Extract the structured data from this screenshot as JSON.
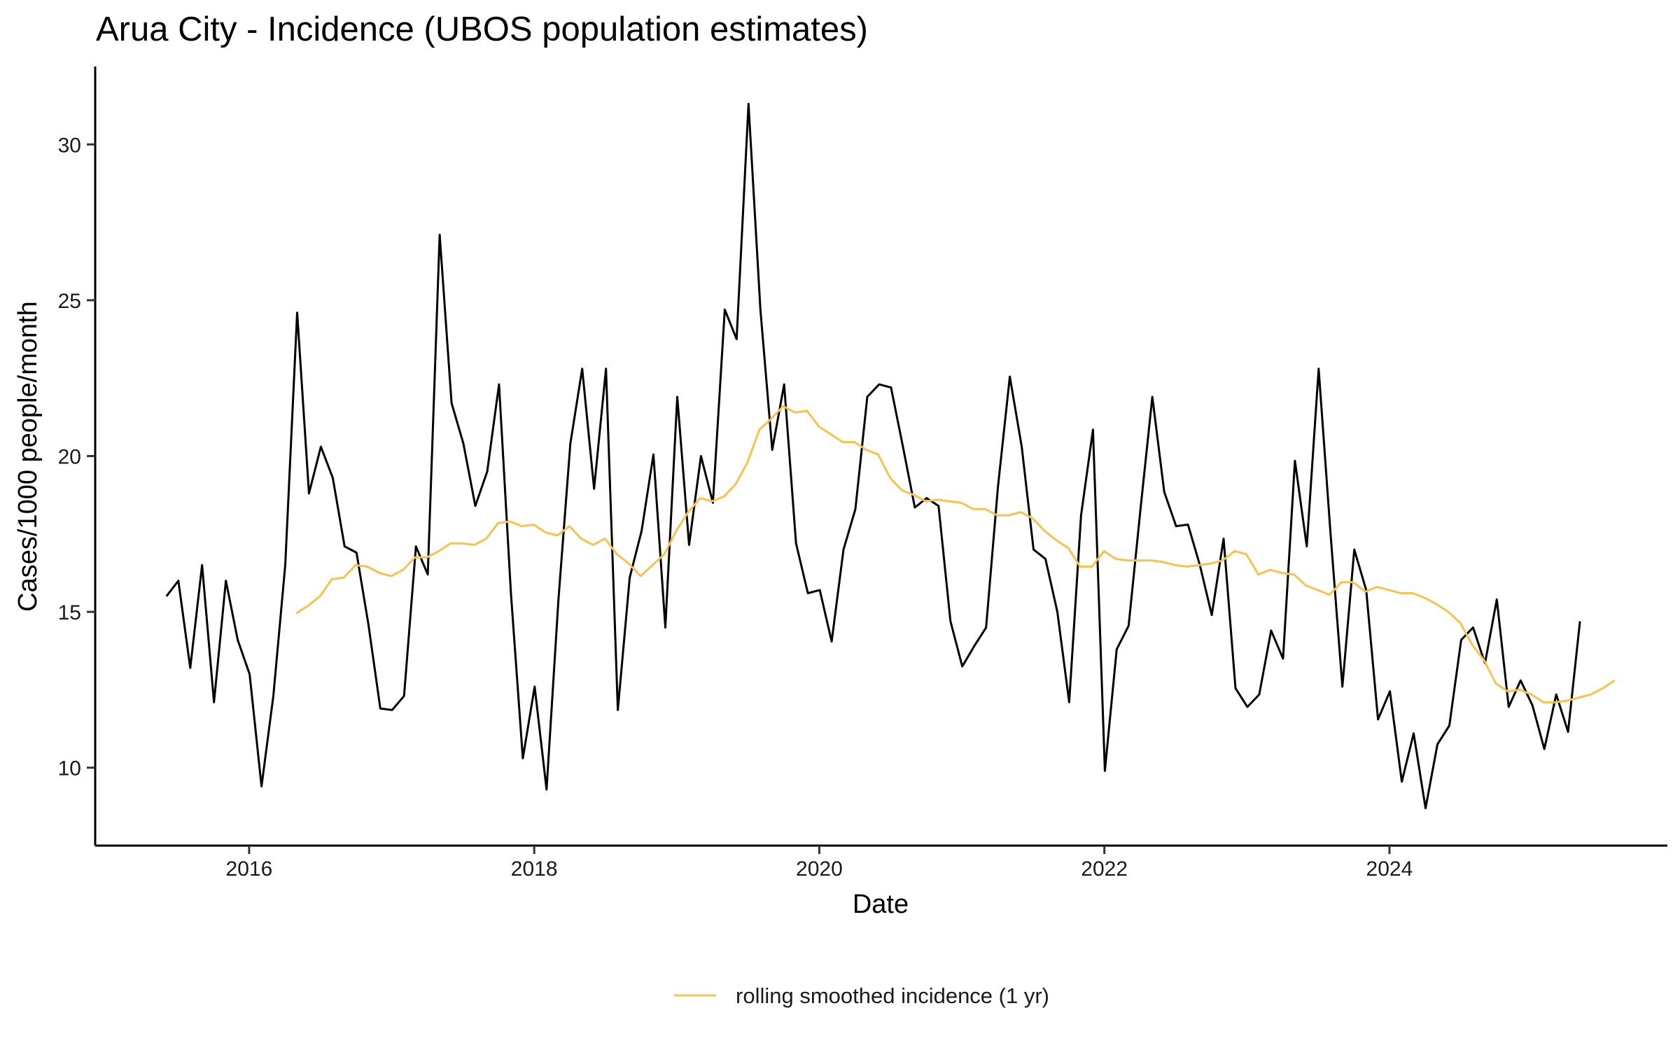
{
  "chart_data": {
    "type": "line",
    "title": "Arua City - Incidence (UBOS population estimates)",
    "xlabel": "Date",
    "ylabel": "Cases/1000 people/month",
    "xlim": [
      2014.92,
      2025.95
    ],
    "ylim": [
      7.5,
      32.5
    ],
    "x_ticks": [
      2016,
      2018,
      2020,
      2022,
      2024
    ],
    "x_tick_labels": [
      "2016",
      "2018",
      "2020",
      "2022",
      "2024"
    ],
    "y_ticks": [
      10,
      15,
      20,
      25,
      30
    ],
    "y_tick_labels": [
      "10",
      "15",
      "20",
      "25",
      "30"
    ],
    "grid": false,
    "legend_position": "bottom",
    "series": [
      {
        "name": "incidence",
        "color": "#000000",
        "in_legend": false,
        "x_start": 2015.42,
        "step_months": 1,
        "values": [
          15.5,
          16.0,
          13.2,
          16.5,
          12.1,
          16.0,
          14.1,
          13.0,
          9.4,
          12.3,
          16.5,
          24.6,
          18.8,
          20.3,
          19.3,
          17.1,
          16.9,
          14.6,
          11.9,
          11.85,
          12.3,
          17.1,
          16.2,
          27.1,
          21.7,
          20.4,
          18.4,
          19.5,
          22.3,
          15.6,
          10.3,
          12.6,
          9.3,
          15.4,
          20.4,
          22.8,
          18.95,
          22.8,
          11.85,
          16.1,
          17.6,
          20.05,
          14.5,
          21.9,
          17.15,
          20.0,
          18.5,
          24.7,
          23.75,
          31.3,
          24.7,
          20.2,
          22.3,
          17.2,
          15.6,
          15.7,
          14.05,
          17.0,
          18.3,
          21.9,
          22.3,
          22.2,
          20.3,
          18.35,
          18.65,
          18.4,
          14.7,
          13.25,
          13.9,
          14.5,
          19.0,
          22.55,
          20.3,
          17.0,
          16.7,
          15.0,
          12.1,
          18.1,
          20.85,
          9.9,
          13.8,
          14.55,
          18.3,
          21.9,
          18.85,
          17.75,
          17.8,
          16.5,
          14.9,
          17.35,
          12.55,
          11.95,
          12.35,
          14.4,
          13.5,
          19.85,
          17.1,
          22.8,
          17.5,
          12.6,
          17.0,
          15.7,
          11.55,
          12.45,
          9.55,
          11.1,
          8.7,
          10.75,
          11.35,
          14.1,
          14.5,
          13.35,
          15.4,
          11.95,
          12.8,
          12.0,
          10.6,
          12.35,
          11.15,
          14.7
        ]
      },
      {
        "name": "rolling smoothed incidence (1 yr)",
        "color": "#f8c24e",
        "in_legend": true,
        "x_start": 2016.33,
        "step_months": 1,
        "values": [
          14.95,
          15.2,
          15.5,
          16.05,
          16.1,
          16.5,
          16.45,
          16.25,
          16.15,
          16.35,
          16.75,
          16.75,
          16.95,
          17.2,
          17.2,
          17.15,
          17.35,
          17.85,
          17.9,
          17.75,
          17.8,
          17.55,
          17.45,
          17.75,
          17.35,
          17.15,
          17.35,
          16.85,
          16.55,
          16.15,
          16.5,
          16.85,
          17.6,
          18.2,
          18.65,
          18.55,
          18.7,
          19.1,
          19.8,
          20.85,
          21.2,
          21.6,
          21.4,
          21.45,
          20.95,
          20.7,
          20.45,
          20.45,
          20.2,
          20.05,
          19.3,
          18.9,
          18.75,
          18.55,
          18.6,
          18.55,
          18.5,
          18.3,
          18.3,
          18.1,
          18.1,
          18.2,
          18.0,
          17.6,
          17.3,
          17.05,
          16.45,
          16.45,
          16.95,
          16.7,
          16.65,
          16.65,
          16.65,
          16.6,
          16.5,
          16.45,
          16.5,
          16.55,
          16.65,
          16.95,
          16.85,
          16.2,
          16.35,
          16.25,
          16.2,
          15.85,
          15.7,
          15.55,
          15.95,
          15.95,
          15.65,
          15.8,
          15.7,
          15.6,
          15.6,
          15.45,
          15.25,
          15.0,
          14.65,
          13.95,
          13.45,
          12.7,
          12.45,
          12.5,
          12.35,
          12.1,
          12.1,
          12.15,
          12.25,
          12.35,
          12.55,
          12.8
        ]
      }
    ]
  }
}
